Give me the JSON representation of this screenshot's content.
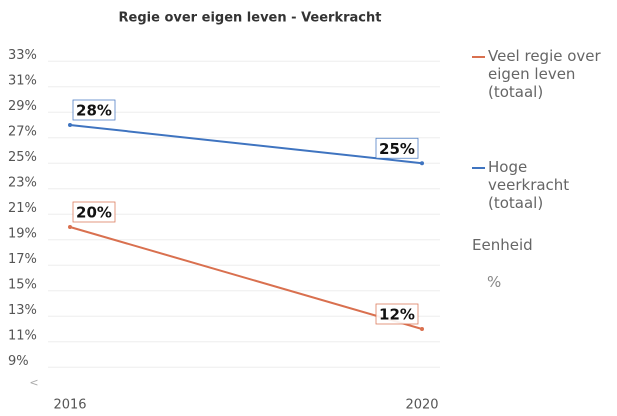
{
  "chart_data": {
    "type": "line",
    "title": "Regie over eigen leven - Veerkracht",
    "categories": [
      "2016",
      "2020"
    ],
    "series": [
      {
        "name": "Veel regie over eigen leven (totaal)",
        "color": "#d9704f",
        "values": [
          20,
          12
        ],
        "value_labels": [
          "20%",
          "12%"
        ]
      },
      {
        "name": "Hoge veerkracht (totaal)",
        "color": "#3f74c0",
        "values": [
          28,
          25
        ],
        "value_labels": [
          "28%",
          "25%"
        ]
      }
    ],
    "ylim": [
      8,
      34
    ],
    "yticks": [
      {
        "value": 33,
        "label": "33%"
      },
      {
        "value": 31,
        "label": "31%"
      },
      {
        "value": 29,
        "label": "29%"
      },
      {
        "value": 27,
        "label": "27%"
      },
      {
        "value": 25,
        "label": "25%"
      },
      {
        "value": 23,
        "label": "23%"
      },
      {
        "value": 21,
        "label": "21%"
      },
      {
        "value": 19,
        "label": "19%"
      },
      {
        "value": 17,
        "label": "17%"
      },
      {
        "value": 15,
        "label": "15%"
      },
      {
        "value": 13,
        "label": "13%"
      },
      {
        "value": 11,
        "label": "11%"
      },
      {
        "value": 9,
        "label": "9%"
      }
    ],
    "grid": true,
    "legend": "right",
    "unit_label": "Eenheid",
    "unit": "%"
  }
}
